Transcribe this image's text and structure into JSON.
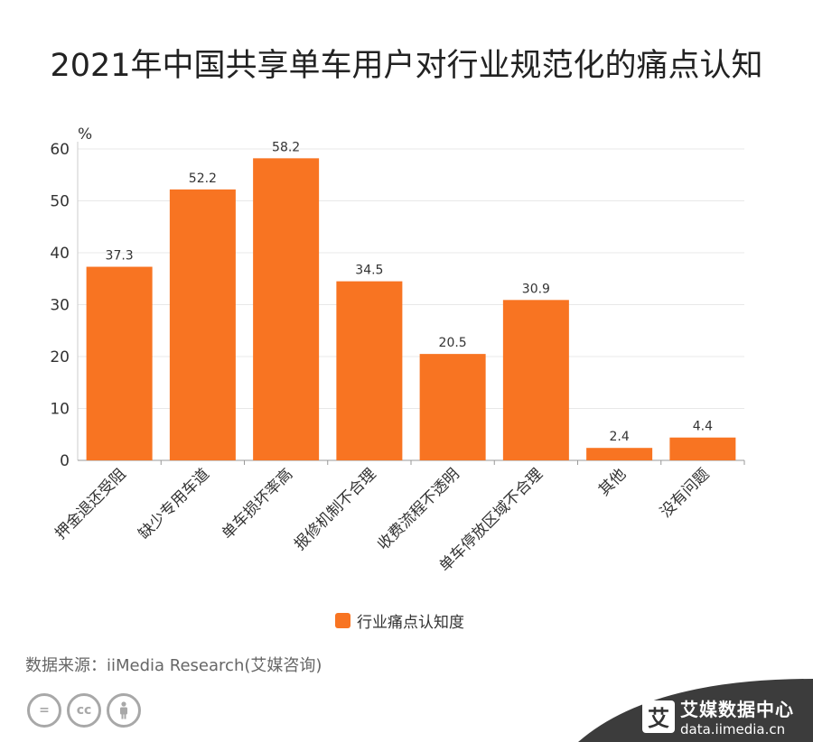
{
  "title": "2021年中国共享单车用户对行业规范化的痛点认知",
  "chart_data": {
    "type": "bar",
    "categories": [
      "押金退还受阻",
      "缺少专用车道",
      "单车损坏率高",
      "报修机制不合理",
      "收费流程不透明",
      "单车停放区域不合理",
      "其他",
      "没有问题"
    ],
    "series": [
      {
        "name": "行业痛点认知度",
        "values": [
          37.3,
          52.2,
          58.2,
          34.5,
          20.5,
          30.9,
          2.4,
          4.4
        ]
      }
    ],
    "ylabel": "%",
    "ylim": [
      0,
      60
    ],
    "yticks": [
      0,
      10,
      20,
      30,
      40,
      50,
      60
    ],
    "grid": true,
    "legend": "bottom-center",
    "bar_color": "#f87422"
  },
  "legend": {
    "label": "行业痛点认知度"
  },
  "source": "数据来源：iiMedia Research(艾媒咨询)",
  "license_icons": [
    "equals-icon",
    "cc-icon",
    "person-icon"
  ],
  "brand": {
    "logo": "艾",
    "name": "艾媒数据中心",
    "url": "data.iimedia.cn"
  },
  "colors": {
    "bar": "#f87422",
    "corner": "#3c3c3c"
  }
}
